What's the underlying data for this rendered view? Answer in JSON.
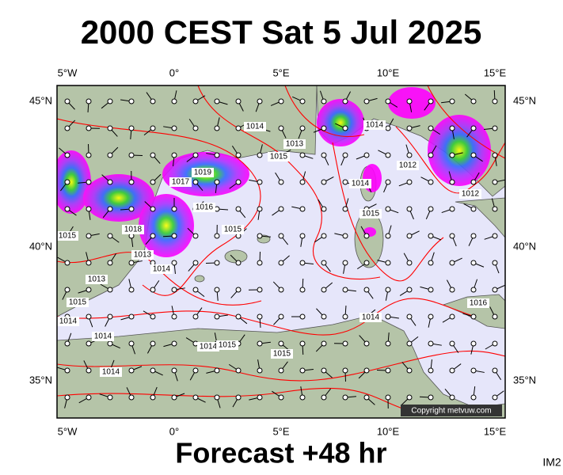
{
  "title": "2000 CEST Sat 5 Jul 2025",
  "footer": "Forecast +48 hr",
  "product": "IM2",
  "copyright": "Copyright metvuw.com",
  "longitude_labels": [
    "5°W",
    "0°",
    "5°E",
    "10°E",
    "15°E"
  ],
  "latitude_labels": [
    "45°N",
    "40°N",
    "35°N"
  ],
  "isobar_labels": [
    "1014",
    "1013",
    "1015",
    "1019",
    "1017",
    "1016",
    "1015",
    "1018",
    "1013",
    "1014",
    "1014",
    "1014",
    "1015",
    "1012",
    "1012",
    "1013",
    "1015",
    "1014",
    "1014",
    "1014",
    "1015",
    "1015",
    "1014",
    "1016",
    "1015",
    "1014"
  ]
}
